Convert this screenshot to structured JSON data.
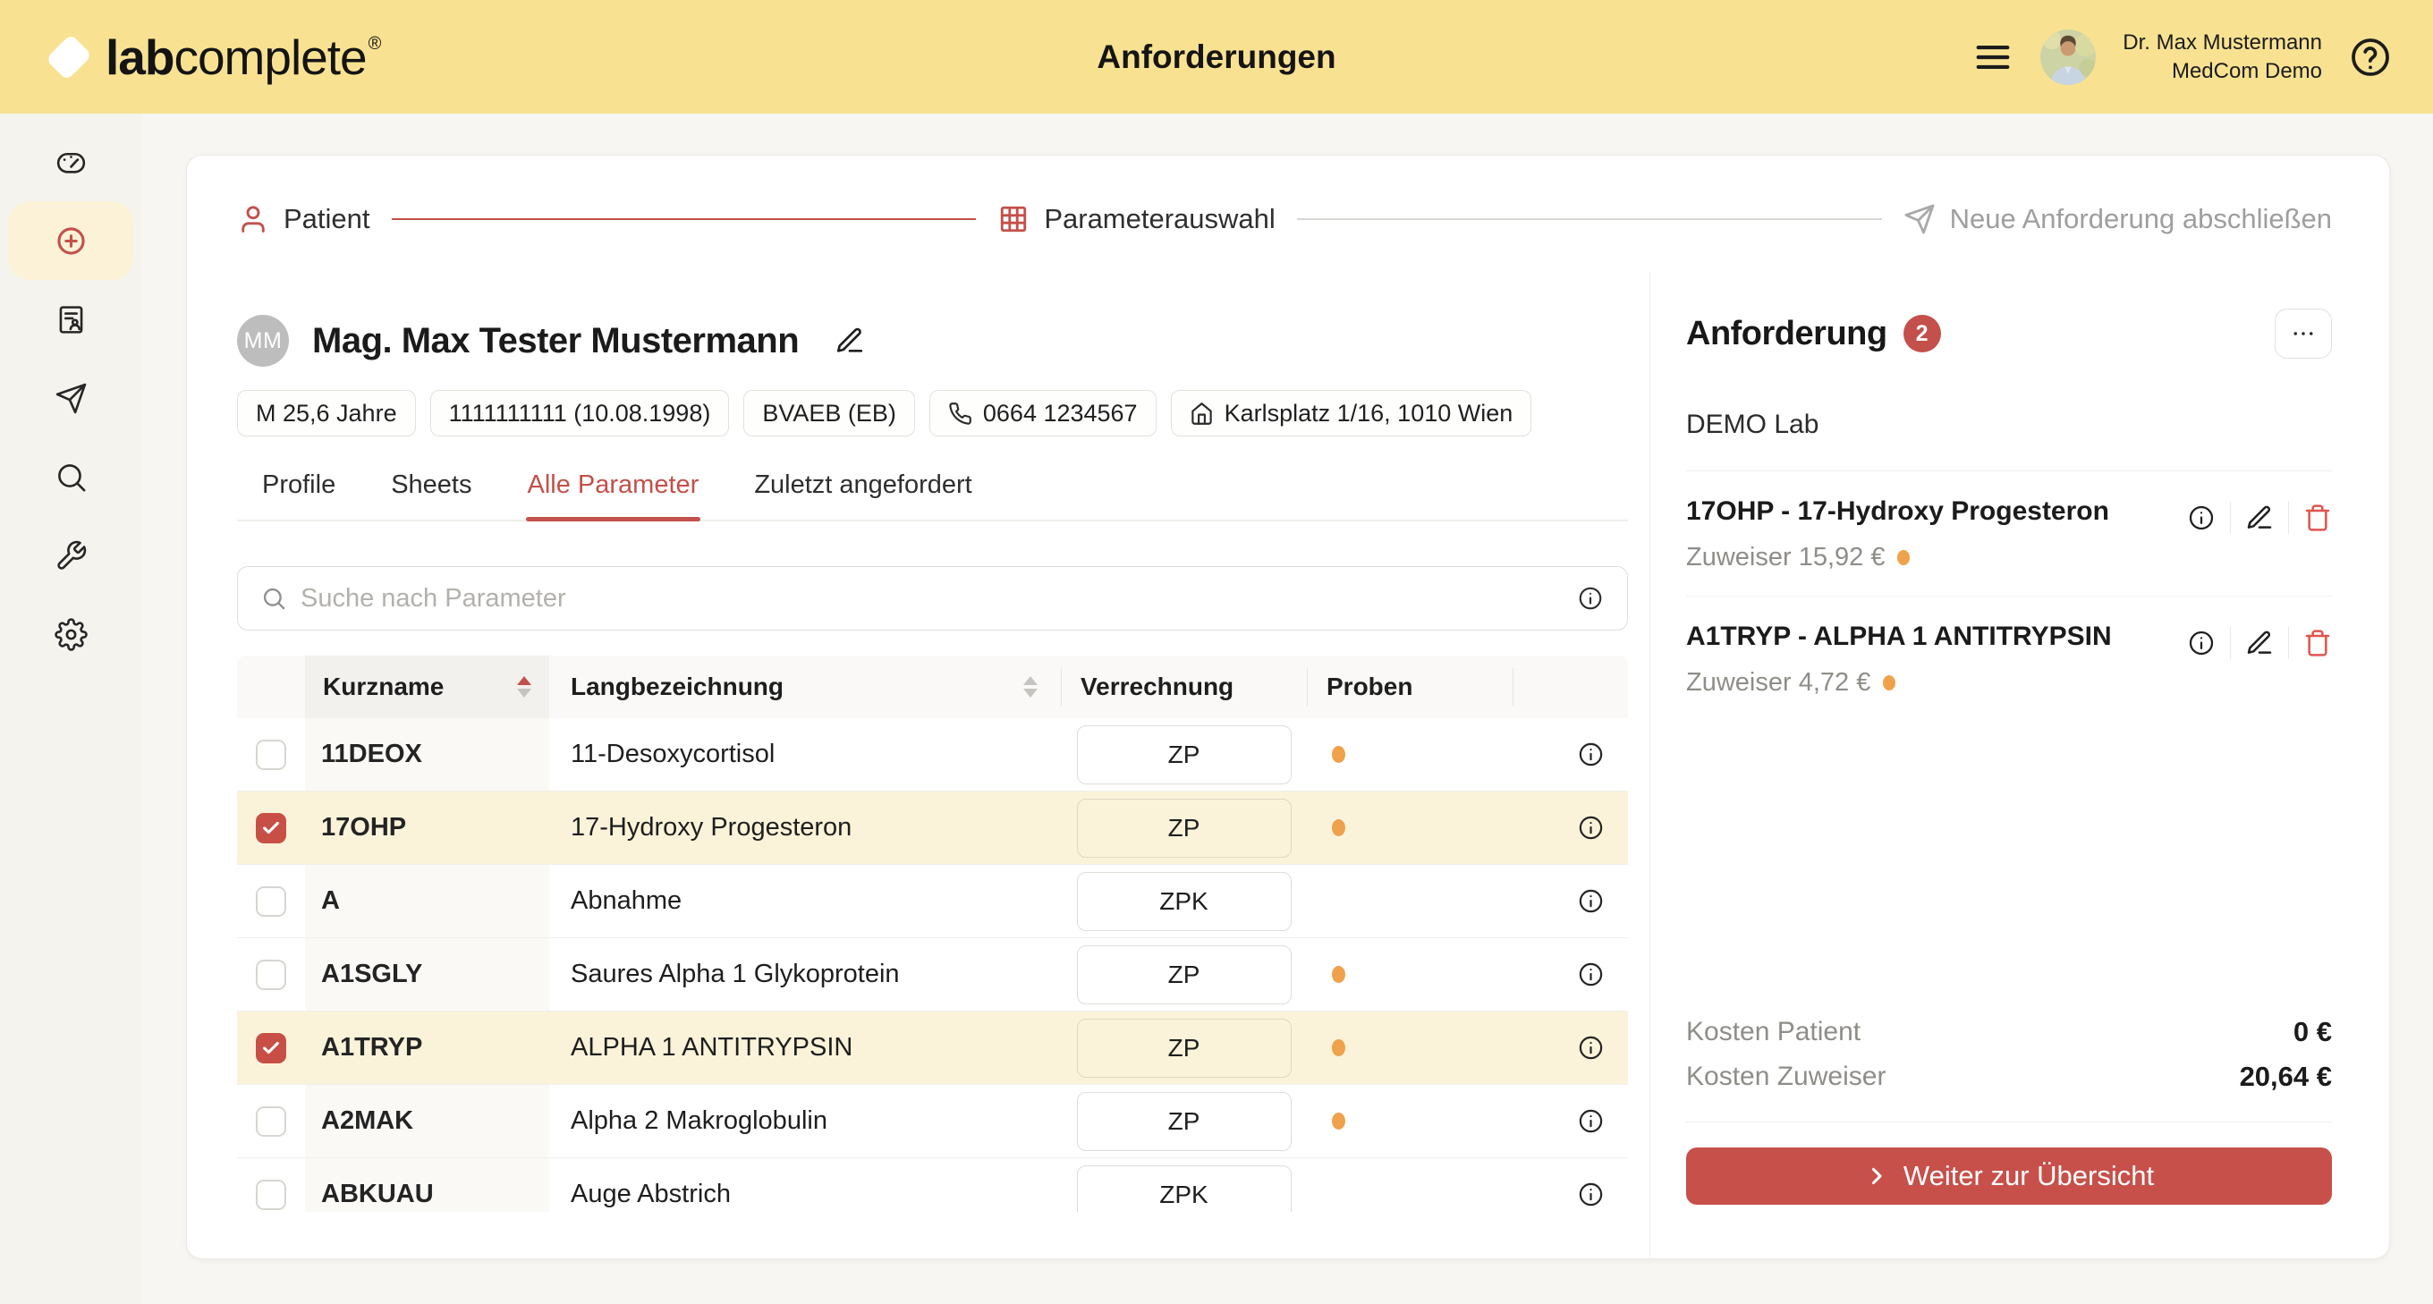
{
  "colors": {
    "accent": "#C3504A",
    "header_yellow": "#F8E292",
    "selected_row": "#FBF3D9",
    "sample_orange": "#EFA14B"
  },
  "header": {
    "logo_bold": "lab",
    "logo_light": "complete",
    "logo_mark": "®",
    "title": "Anforderungen",
    "user_name": "Dr. Max Mustermann",
    "user_org": "MedCom Demo"
  },
  "sidebar": {
    "items": [
      {
        "name": "dashboard",
        "icon": "gauge-icon",
        "active": false
      },
      {
        "name": "new-request",
        "icon": "plus-circle-icon",
        "active": true
      },
      {
        "name": "patient-records",
        "icon": "patient-record-icon",
        "active": false
      },
      {
        "name": "sent-requests",
        "icon": "send-icon",
        "active": false
      },
      {
        "name": "search",
        "icon": "search-icon",
        "active": false
      },
      {
        "name": "tools",
        "icon": "wrench-icon",
        "active": false
      },
      {
        "name": "settings",
        "icon": "gear-icon",
        "active": false
      }
    ]
  },
  "stepper": {
    "steps": [
      {
        "label": "Patient",
        "icon": "person-icon",
        "state": "done"
      },
      {
        "label": "Parameterauswahl",
        "icon": "table-grid-icon",
        "state": "active"
      },
      {
        "label": "Neue Anforderung abschließen",
        "icon": "send-icon",
        "state": "todo"
      }
    ]
  },
  "patient": {
    "initials": "MM",
    "name": "Mag. Max Tester Mustermann",
    "chips": [
      {
        "label": "M 25,6 Jahre"
      },
      {
        "label": "1111111111 (10.08.1998)"
      },
      {
        "label": "BVAEB (EB)"
      },
      {
        "icon": "phone-icon",
        "label": "0664 1234567"
      },
      {
        "icon": "home-icon",
        "label": "Karlsplatz 1/16, 1010 Wien"
      }
    ]
  },
  "tabs": [
    {
      "label": "Profile",
      "active": false
    },
    {
      "label": "Sheets",
      "active": false
    },
    {
      "label": "Alle Parameter",
      "active": true
    },
    {
      "label": "Zuletzt angefordert",
      "active": false
    }
  ],
  "search": {
    "placeholder": "Suche nach Parameter"
  },
  "table": {
    "columns": [
      "Kurzname",
      "Langbezeichnung",
      "Verrechnung",
      "Proben"
    ],
    "rows": [
      {
        "code": "11DEOX",
        "name": "11-Desoxycortisol",
        "billing": "ZP",
        "sample": true,
        "checked": false
      },
      {
        "code": "17OHP",
        "name": "17-Hydroxy Progesteron",
        "billing": "ZP",
        "sample": true,
        "checked": true
      },
      {
        "code": "A",
        "name": "Abnahme",
        "billing": "ZPK",
        "sample": false,
        "checked": false
      },
      {
        "code": "A1SGLY",
        "name": "Saures Alpha 1 Glykoprotein",
        "billing": "ZP",
        "sample": true,
        "checked": false
      },
      {
        "code": "A1TRYP",
        "name": "ALPHA 1 ANTITRYPSIN",
        "billing": "ZP",
        "sample": true,
        "checked": true
      },
      {
        "code": "A2MAK",
        "name": "Alpha 2 Makroglobulin",
        "billing": "ZP",
        "sample": true,
        "checked": false
      },
      {
        "code": "ABKUAU",
        "name": "Auge Abstrich",
        "billing": "ZPK",
        "sample": false,
        "checked": false
      }
    ]
  },
  "panel": {
    "title": "Anforderung",
    "count": "2",
    "lab": "DEMO Lab",
    "items": [
      {
        "title": "17OHP - 17-Hydroxy Progesteron",
        "price": "Zuweiser 15,92 €",
        "sample": true
      },
      {
        "title": "A1TRYP - ALPHA 1 ANTITRYPSIN",
        "price": "Zuweiser 4,72 €",
        "sample": true
      }
    ],
    "costs": [
      {
        "label": "Kosten Patient",
        "value": "0 €"
      },
      {
        "label": "Kosten Zuweiser",
        "value": "20,64 €"
      }
    ],
    "cta": "Weiter zur Übersicht"
  }
}
